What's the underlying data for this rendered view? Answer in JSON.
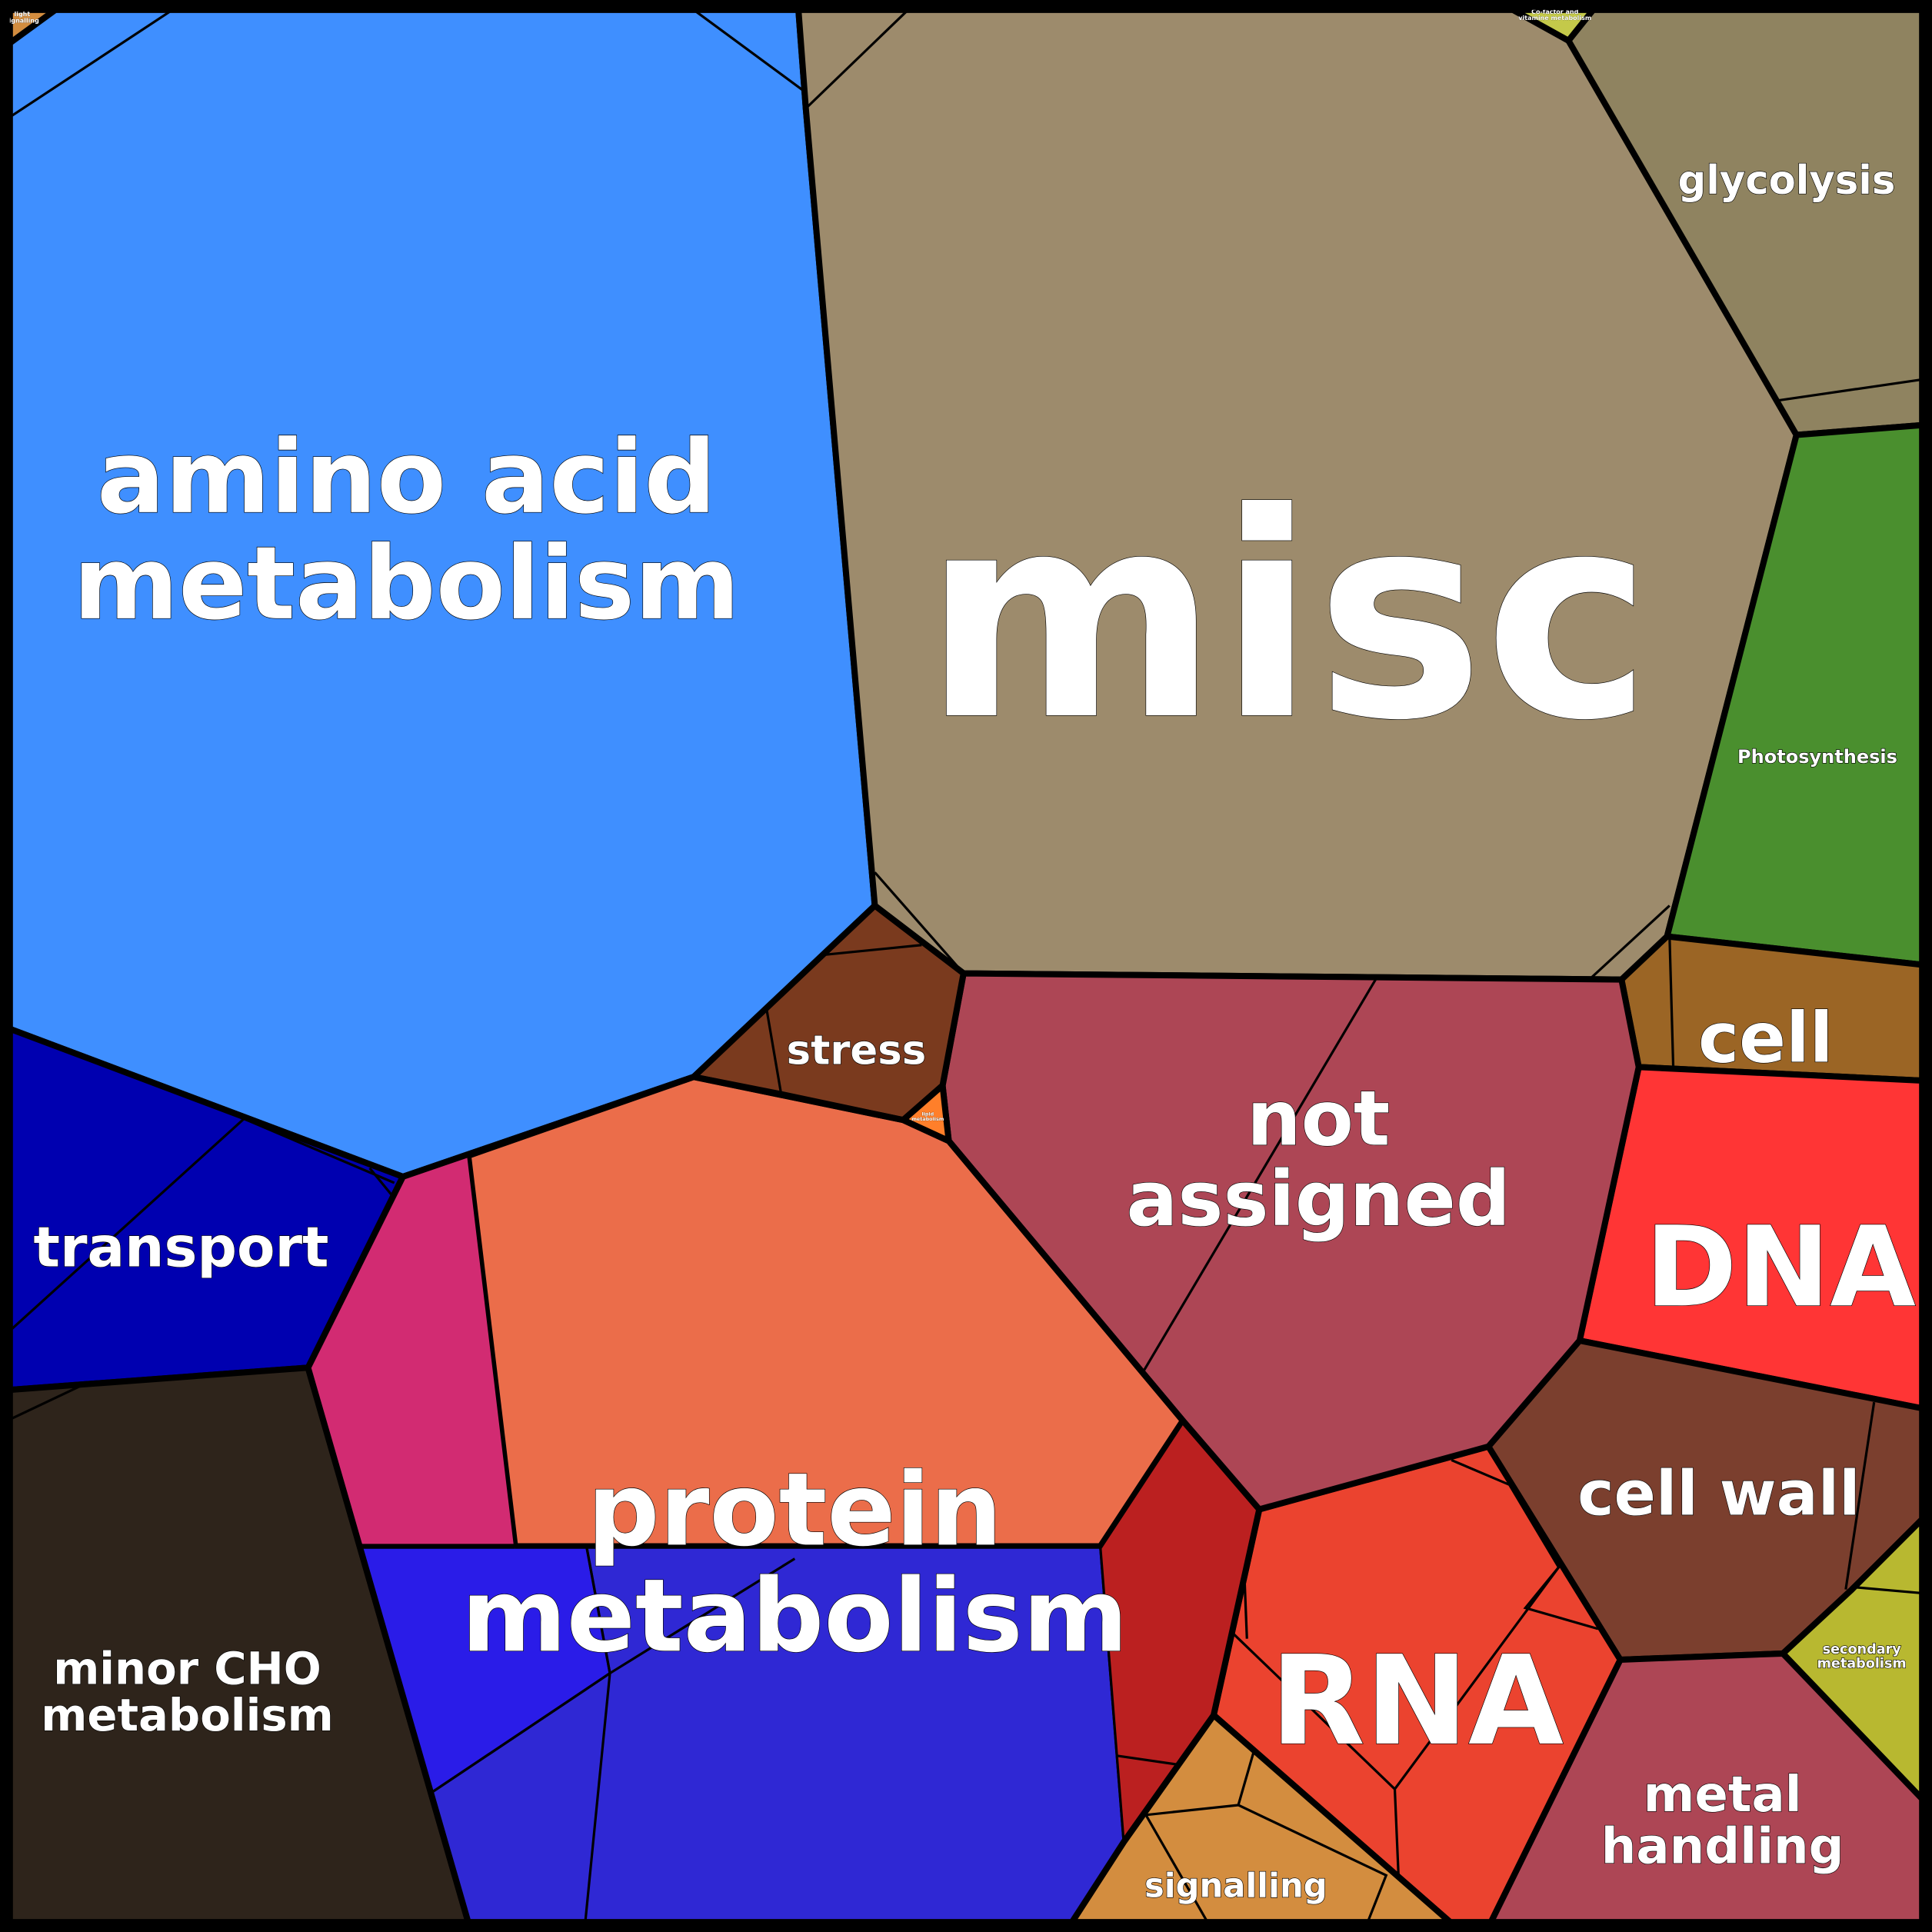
{
  "cells": [
    {
      "id": "light-signalling",
      "label": [
        "light",
        "signalling"
      ],
      "color": "#d38d3f"
    },
    {
      "id": "amino-acid-metabolism",
      "label": [
        "amino acid",
        "metabolism"
      ],
      "color": "#3f8fff"
    },
    {
      "id": "misc",
      "label": [
        "misc"
      ],
      "color": "#9d8b6c"
    },
    {
      "id": "cofactor",
      "label": [
        "Co-factor and",
        "vitamine metabolism"
      ],
      "color": "#c4c94a"
    },
    {
      "id": "glycolysis",
      "label": [
        "glycolysis"
      ],
      "color": "#8f8360"
    },
    {
      "id": "photosynthesis",
      "label": [
        "Photosynthesis"
      ],
      "color": "#4a8f2e"
    },
    {
      "id": "cell",
      "label": [
        "cell"
      ],
      "color": "#9b6525"
    },
    {
      "id": "dna",
      "label": [
        "DNA"
      ],
      "color": "#ff3535"
    },
    {
      "id": "cell-wall",
      "label": [
        "cell wall"
      ],
      "color": "#7b3f2e"
    },
    {
      "id": "secondary-metabolism",
      "label": [
        "secondary",
        "metabolism"
      ],
      "color": "#b8b830"
    },
    {
      "id": "metal-handling",
      "label": [
        "metal",
        "handling"
      ],
      "color": "#ad4655"
    },
    {
      "id": "rna",
      "label": [
        "RNA"
      ],
      "color": "#eb432f"
    },
    {
      "id": "signalling",
      "label": [
        "signalling"
      ],
      "color": "#d38d3f"
    },
    {
      "id": "not-assigned",
      "label": [
        "not",
        "assigned"
      ],
      "color": "#ad4655"
    },
    {
      "id": "stress",
      "label": [
        "stress"
      ],
      "color": "#7a3a1e"
    },
    {
      "id": "lipid-metabolism",
      "label": [
        "lipid",
        "metabolism"
      ],
      "color": "#ff7f2a"
    },
    {
      "id": "transport",
      "label": [
        "transport"
      ],
      "color": "#0000b0"
    },
    {
      "id": "minor-cho-metabolism",
      "label": [
        "minor CHO",
        "metabolism"
      ],
      "color": "#2e241b"
    },
    {
      "id": "protein-metabolism",
      "label": [
        "protein",
        "metabolism"
      ],
      "color": "#eb6d4a"
    }
  ],
  "subcell_colors": {
    "protein-pink": "#d22b72",
    "protein-blue": "#2f28d4",
    "protein-bright-blue": "#2a1ce8",
    "dark-red": "#bb2020"
  }
}
